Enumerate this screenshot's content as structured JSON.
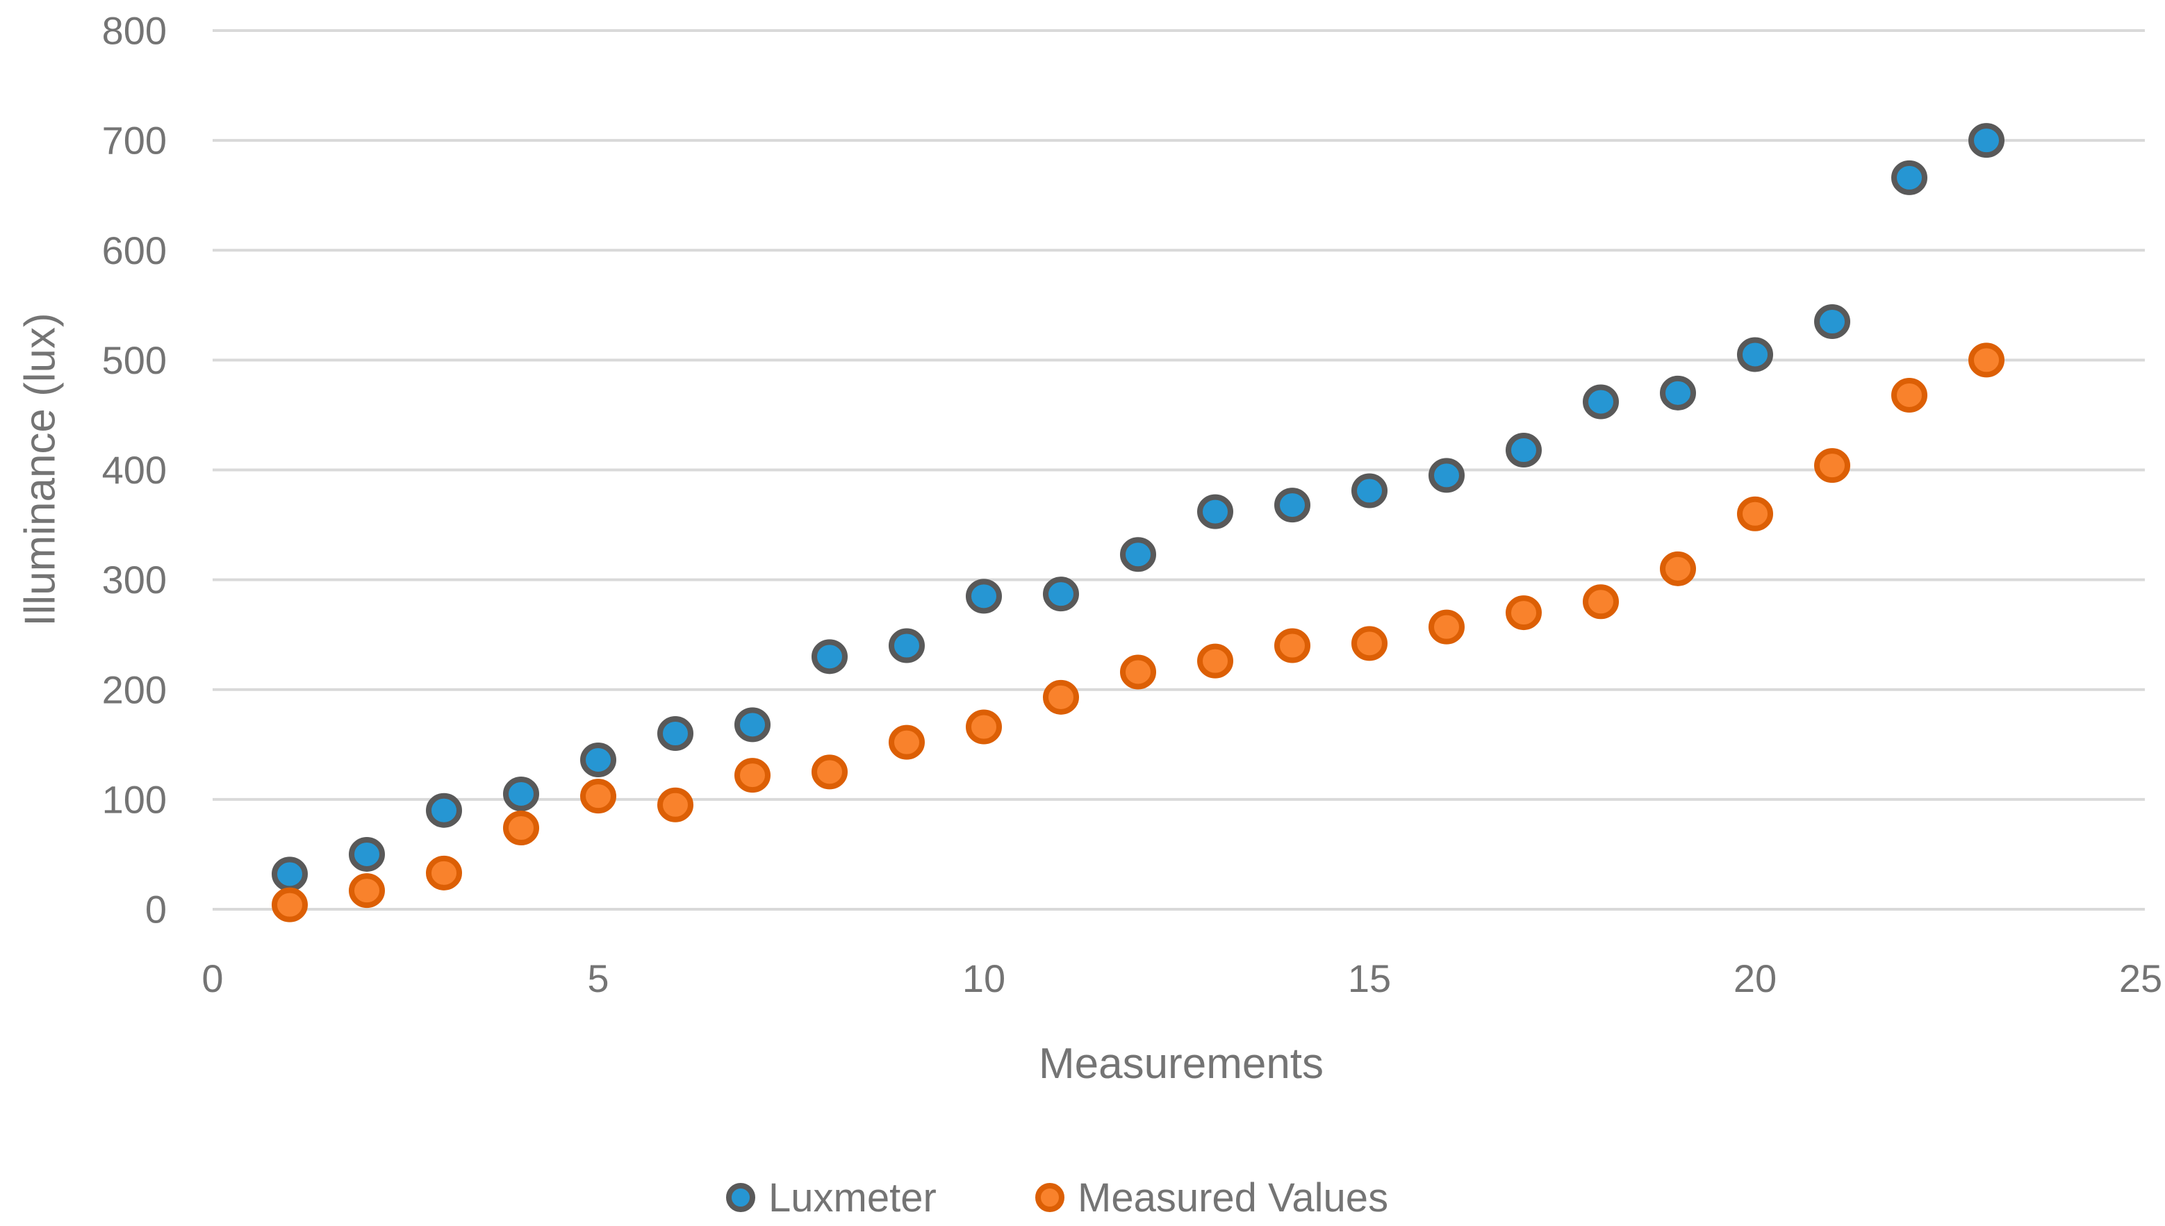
{
  "chart_data": {
    "type": "scatter",
    "title": "",
    "xlabel": "Measurements",
    "ylabel": "Illuminance (lux)",
    "xlim": [
      0,
      25
    ],
    "ylim": [
      0,
      800
    ],
    "x_ticks": [
      0,
      5,
      10,
      15,
      20,
      25
    ],
    "y_ticks": [
      0,
      100,
      200,
      300,
      400,
      500,
      600,
      700,
      800
    ],
    "grid": "horizontal-only",
    "legend_position": "bottom-center",
    "x": [
      1,
      2,
      3,
      4,
      5,
      6,
      7,
      8,
      9,
      10,
      11,
      12,
      13,
      14,
      15,
      16,
      17,
      18,
      19,
      20,
      21,
      22,
      23
    ],
    "series": [
      {
        "name": "Luxmeter",
        "marker": "circle",
        "fill": "#2696D3",
        "stroke": "#595959",
        "values": [
          32,
          50,
          90,
          105,
          136,
          160,
          168,
          230,
          240,
          285,
          287,
          323,
          362,
          368,
          381,
          395,
          418,
          462,
          470,
          505,
          535,
          666,
          700
        ]
      },
      {
        "name": "Measured Values",
        "marker": "circle",
        "fill": "#F9822C",
        "stroke": "#DC5F05",
        "values": [
          4,
          17,
          33,
          74,
          103,
          95,
          122,
          125,
          152,
          166,
          193,
          216,
          226,
          240,
          242,
          257,
          270,
          280,
          310,
          360,
          404,
          468,
          500
        ]
      }
    ]
  },
  "styles": {
    "background": "#FFFFFF",
    "gridline_color": "#D9D9D9",
    "text_color": "#747474"
  }
}
